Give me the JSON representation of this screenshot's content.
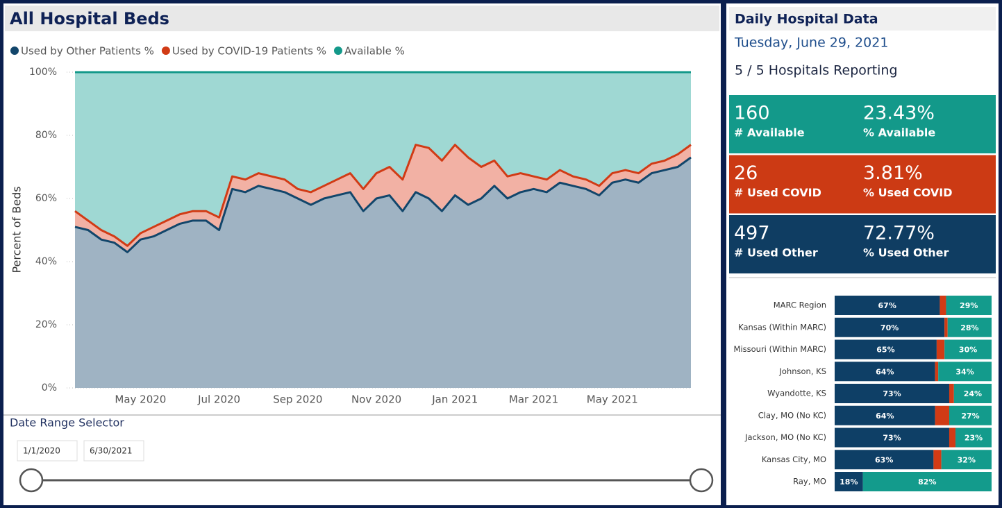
{
  "chart_data": [
    {
      "type": "area",
      "title": "All Hospital Beds",
      "y_label": "Percent of Beds",
      "categories": [
        null,
        null,
        null,
        null,
        null,
        "May 2020",
        null,
        null,
        null,
        null,
        null,
        "Jul 2020",
        null,
        null,
        null,
        null,
        null,
        "Sep 2020",
        null,
        null,
        null,
        null,
        null,
        "Nov 2020",
        null,
        null,
        null,
        null,
        null,
        "Jan 2021",
        null,
        null,
        null,
        null,
        null,
        "Mar 2021",
        null,
        null,
        null,
        null,
        null,
        "May 2021",
        null,
        null,
        null,
        null,
        null,
        null
      ],
      "series": [
        {
          "name": "Used by Other Patients %",
          "color": "#12466b",
          "fill": "#9fb3c3",
          "values": [
            51,
            50,
            47,
            46,
            43,
            47,
            48,
            50,
            52,
            53,
            53,
            50,
            63,
            62,
            64,
            63,
            62,
            60,
            58,
            60,
            61,
            62,
            56,
            60,
            61,
            56,
            62,
            60,
            56,
            61,
            58,
            60,
            64,
            60,
            62,
            63,
            62,
            65,
            64,
            63,
            61,
            65,
            66,
            65,
            68,
            69,
            70,
            73
          ]
        },
        {
          "name": "Used by COVID-19 Patients %",
          "color": "#d13b15",
          "fill": "#f2b1a4",
          "values": [
            5,
            3,
            3,
            2,
            2,
            2,
            3,
            3,
            3,
            3,
            3,
            4,
            4,
            4,
            4,
            4,
            4,
            3,
            4,
            4,
            5,
            6,
            7,
            8,
            9,
            10,
            15,
            16,
            16,
            16,
            15,
            10,
            8,
            7,
            6,
            4,
            4,
            4,
            3,
            3,
            3,
            3,
            3,
            3,
            3,
            3,
            4,
            4
          ]
        },
        {
          "name": "Available %",
          "color": "#13998a",
          "fill": "#9fd8d3",
          "values": [
            44,
            47,
            50,
            52,
            55,
            51,
            49,
            47,
            45,
            44,
            44,
            46,
            33,
            34,
            32,
            33,
            34,
            37,
            38,
            36,
            34,
            32,
            37,
            32,
            30,
            34,
            23,
            24,
            28,
            23,
            27,
            30,
            28,
            33,
            32,
            33,
            34,
            31,
            33,
            34,
            36,
            32,
            31,
            32,
            29,
            28,
            26,
            23
          ]
        }
      ],
      "ylim": [
        0,
        100
      ],
      "yticks": [
        {
          "value": 0,
          "label": "0%"
        },
        {
          "value": 20,
          "label": "20%"
        },
        {
          "value": 40,
          "label": "40%"
        },
        {
          "value": 60,
          "label": "60%"
        },
        {
          "value": 80,
          "label": "80%"
        },
        {
          "value": 100,
          "label": "100%"
        }
      ],
      "grid": true,
      "legend": "top-left"
    },
    {
      "type": "stacked_bar_h",
      "categories": [
        "MARC Region",
        "Kansas (Within MARC)",
        "Missouri (Within MARC)",
        "Johnson, KS",
        "Wyandotte, KS",
        "Clay, MO (No KC)",
        "Jackson, MO (No KC)",
        "Kansas City, MO",
        "Ray, MO"
      ],
      "series": [
        {
          "color": "#0e3f66",
          "values": [
            67,
            70,
            65,
            64,
            73,
            64,
            73,
            63,
            18
          ],
          "value_labels": [
            "67%",
            "70%",
            "65%",
            "64%",
            "73%",
            "64%",
            "73%",
            "63%",
            "18%"
          ]
        },
        {
          "color": "#d13b15",
          "values": [
            4,
            2,
            5,
            2,
            3,
            9,
            4,
            5,
            0
          ]
        },
        {
          "color": "#139b8c",
          "values": [
            29,
            28,
            30,
            34,
            24,
            27,
            23,
            32,
            82
          ],
          "value_labels": [
            "29%",
            "28%",
            "30%",
            "34%",
            "24%",
            "27%",
            "23%",
            "32%",
            "82%"
          ]
        }
      ]
    }
  ],
  "date_range": {
    "title": "Date Range Selector",
    "start": "1/1/2020",
    "end": "6/30/2021"
  },
  "daily": {
    "title": "Daily Hospital Data",
    "date": "Tuesday, June 29, 2021",
    "reporting": "5 / 5 Hospitals Reporting",
    "cards": [
      {
        "value": "160",
        "label": "# Available",
        "pct": "23.43%",
        "pct_label": "% Available",
        "color": "#13998a"
      },
      {
        "value": "26",
        "label": "# Used COVID",
        "pct": "3.81%",
        "pct_label": "% Used COVID",
        "color": "#cc3a14"
      },
      {
        "value": "497",
        "label": "# Used Other",
        "pct": "72.77%",
        "pct_label": "% Used Other",
        "color": "#0f3d62"
      }
    ]
  }
}
